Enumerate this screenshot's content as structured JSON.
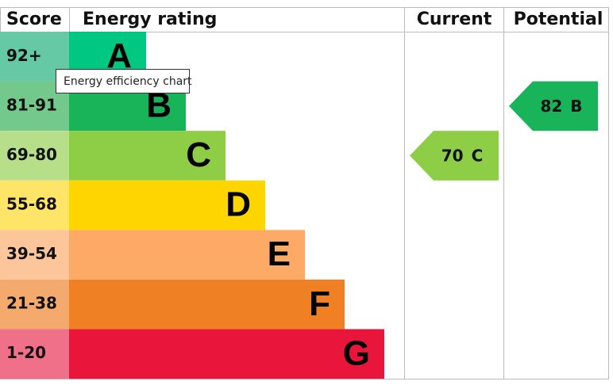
{
  "header": {
    "score": "Score",
    "rating": "Energy rating",
    "current": "Current",
    "potential": "Potential"
  },
  "bands": [
    {
      "score": "92+",
      "letter": "A",
      "color": "#00c781",
      "light": "#64c9a4"
    },
    {
      "score": "81-91",
      "letter": "B",
      "color": "#19b459",
      "light": "#72c98b"
    },
    {
      "score": "69-80",
      "letter": "C",
      "color": "#8dce46",
      "light": "#b7df8a"
    },
    {
      "score": "55-68",
      "letter": "D",
      "color": "#ffd500",
      "light": "#ffe567"
    },
    {
      "score": "39-54",
      "letter": "E",
      "color": "#fcaa65",
      "light": "#fdc59a"
    },
    {
      "score": "21-38",
      "letter": "F",
      "color": "#ef8023",
      "light": "#f3aa6c"
    },
    {
      "score": "1-20",
      "letter": "G",
      "color": "#e9153b",
      "light": "#f07089"
    }
  ],
  "current": {
    "score": 70,
    "letter": "C"
  },
  "potential": {
    "score": 82,
    "letter": "B"
  },
  "tooltip": "Energy efficiency chart"
}
